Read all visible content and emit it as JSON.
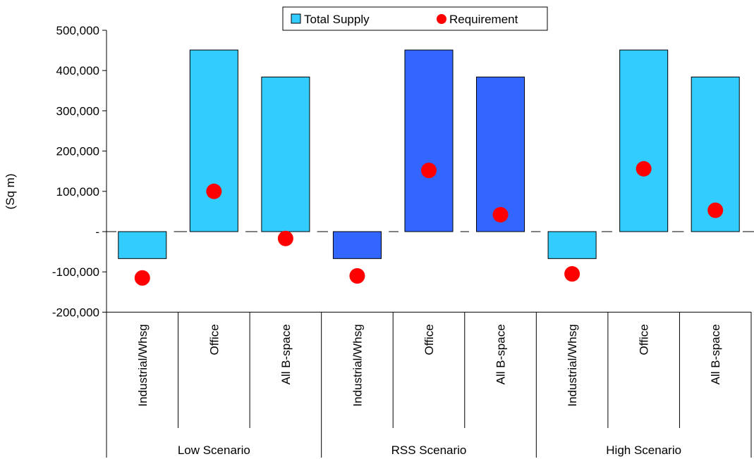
{
  "chart_data": {
    "type": "bar",
    "xlabel": "",
    "ylabel": "(Sq m)",
    "ylim": [
      -200000,
      500000
    ],
    "yticks": [
      {
        "value": 500000,
        "label": "500,000"
      },
      {
        "value": 400000,
        "label": "400,000"
      },
      {
        "value": 300000,
        "label": "300,000"
      },
      {
        "value": 200000,
        "label": "200,000"
      },
      {
        "value": 100000,
        "label": "100,000"
      },
      {
        "value": 0,
        "label": "-"
      },
      {
        "value": -100000,
        "label": "-100,000"
      },
      {
        "value": -200000,
        "label": "-200,000"
      }
    ],
    "legend_position": "top-center",
    "categories": [
      "Industrial/Whsg",
      "Office",
      "All B-space",
      "Industrial/Whsg",
      "Office",
      "All B-space",
      "Industrial/Whsg",
      "Office",
      "All B-space"
    ],
    "groups": [
      {
        "label": "Low Scenario",
        "span": 3
      },
      {
        "label": "RSS Scenario",
        "span": 3
      },
      {
        "label": "High Scenario",
        "span": 3
      }
    ],
    "series": [
      {
        "name": "Total Supply",
        "kind": "bar",
        "values": [
          -67000,
          451000,
          384000,
          -67000,
          451000,
          384000,
          -67000,
          451000,
          384000
        ]
      },
      {
        "name": "Requirement",
        "kind": "marker",
        "values": [
          -115000,
          100000,
          -17000,
          -110000,
          152000,
          42000,
          -105000,
          156000,
          53000
        ]
      }
    ],
    "colors": {
      "bar_default": "#33CCFF",
      "bar_highlight": "#3366FF",
      "highlight_group": 1,
      "marker": "#FF0000",
      "axis": "#000000"
    }
  }
}
